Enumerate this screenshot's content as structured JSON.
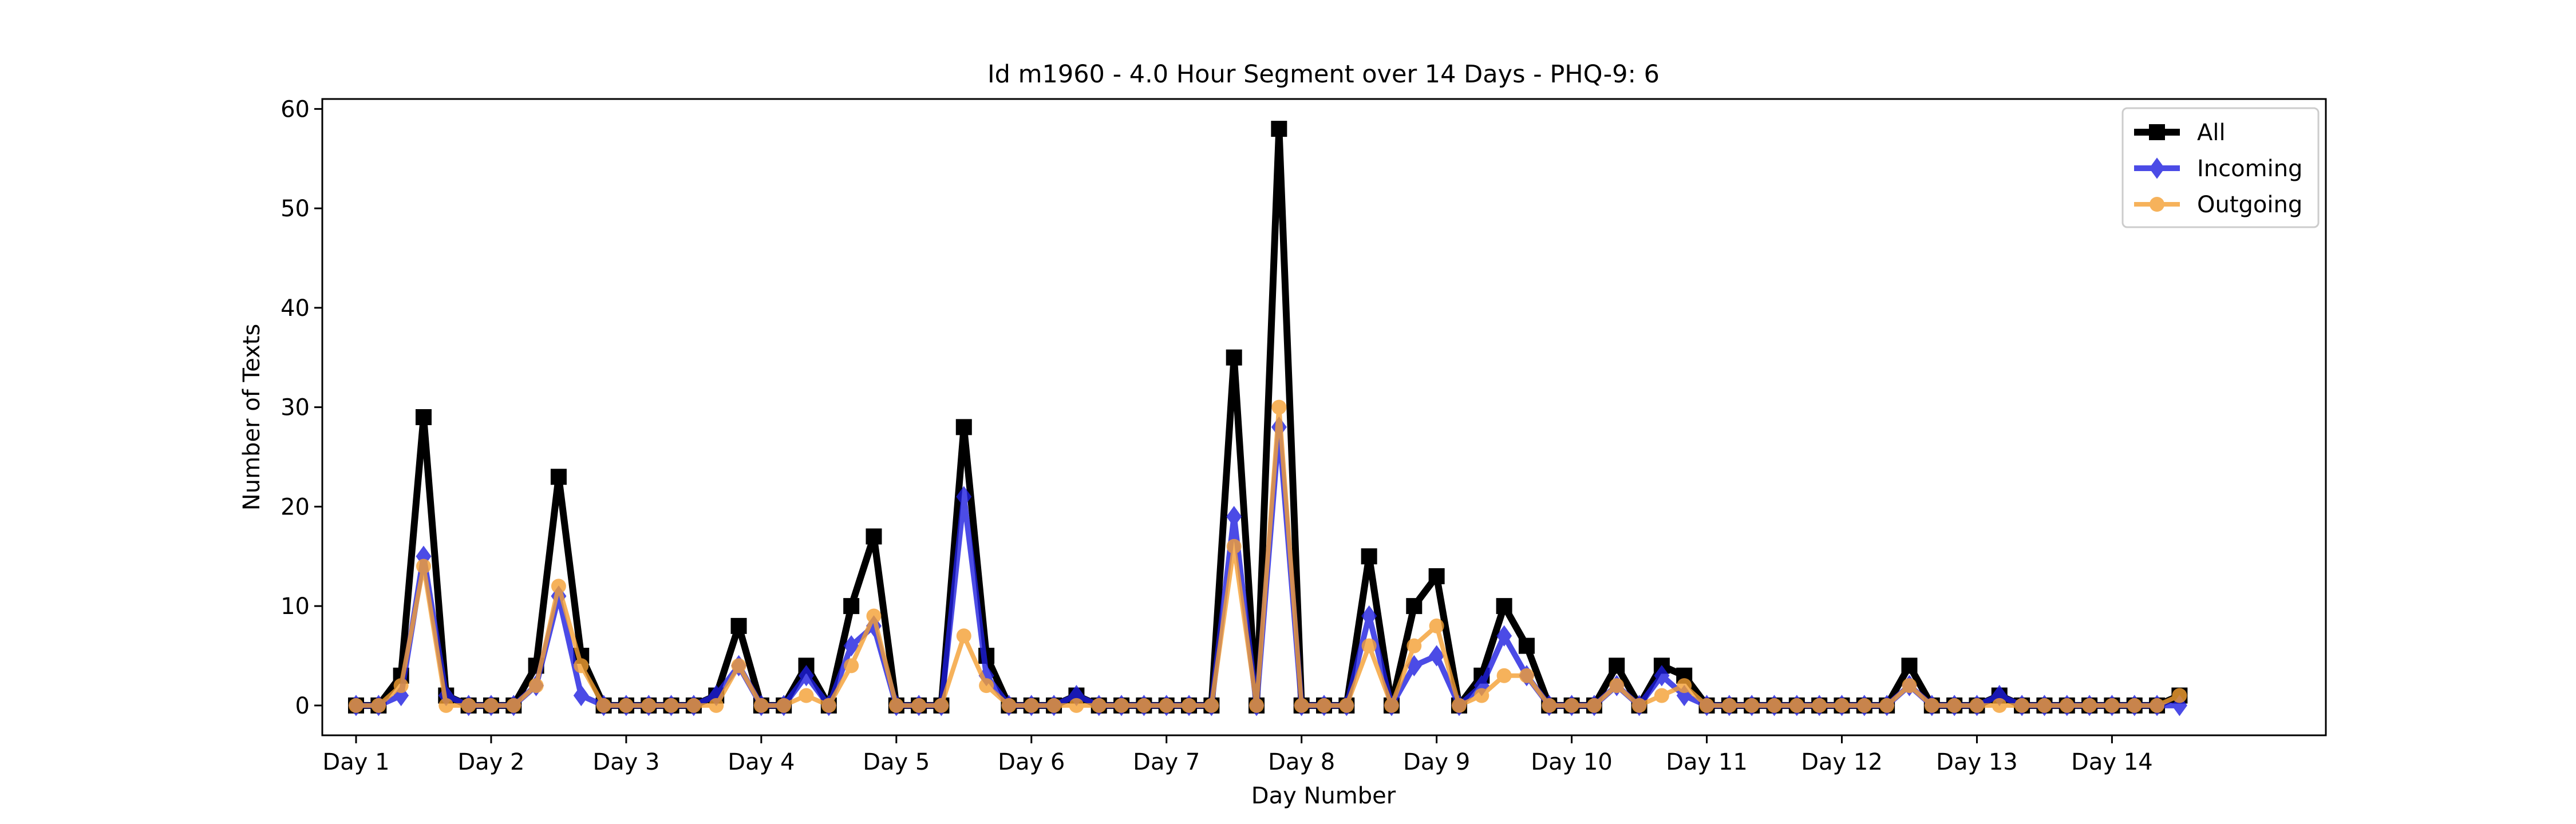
{
  "chart_data": {
    "type": "line",
    "title": "Id m1960 - 4.0 Hour Segment over 14 Days - PHQ-9: 6",
    "xlabel": "Day Number",
    "ylabel": "Number of Texts",
    "ylim": [
      -3,
      61
    ],
    "xlim": [
      -1.5,
      87.5
    ],
    "yticks": [
      0,
      10,
      20,
      30,
      40,
      50,
      60
    ],
    "xticks": [
      {
        "pos": 0,
        "label": "Day 1"
      },
      {
        "pos": 6,
        "label": "Day 2"
      },
      {
        "pos": 12,
        "label": "Day 3"
      },
      {
        "pos": 18,
        "label": "Day 4"
      },
      {
        "pos": 24,
        "label": "Day 5"
      },
      {
        "pos": 30,
        "label": "Day 6"
      },
      {
        "pos": 36,
        "label": "Day 7"
      },
      {
        "pos": 42,
        "label": "Day 8"
      },
      {
        "pos": 48,
        "label": "Day 9"
      },
      {
        "pos": 54,
        "label": "Day 10"
      },
      {
        "pos": 60,
        "label": "Day 11"
      },
      {
        "pos": 66,
        "label": "Day 12"
      },
      {
        "pos": 72,
        "label": "Day 13"
      },
      {
        "pos": 78,
        "label": "Day 14"
      }
    ],
    "grid": false,
    "legend_position": "top-right",
    "series": [
      {
        "name": "All",
        "color": "#000000",
        "marker": "square",
        "values": [
          0,
          0,
          3,
          29,
          1,
          0,
          0,
          0,
          4,
          23,
          5,
          0,
          0,
          0,
          0,
          0,
          1,
          8,
          0,
          0,
          4,
          0,
          10,
          17,
          0,
          0,
          0,
          28,
          5,
          0,
          0,
          0,
          1,
          0,
          0,
          0,
          0,
          0,
          0,
          35,
          0,
          58,
          0,
          0,
          0,
          15,
          0,
          10,
          13,
          0,
          3,
          10,
          6,
          0,
          0,
          0,
          4,
          0,
          4,
          3,
          0,
          0,
          0,
          0,
          0,
          0,
          0,
          0,
          0,
          4,
          0,
          0,
          0,
          1,
          0,
          0,
          0,
          0,
          0,
          0,
          0,
          1
        ]
      },
      {
        "name": "Incoming",
        "color": "#1f1fe0",
        "marker": "diamond",
        "values": [
          0,
          0,
          1,
          15,
          1,
          0,
          0,
          0,
          2,
          11,
          1,
          0,
          0,
          0,
          0,
          0,
          1,
          4,
          0,
          0,
          3,
          0,
          6,
          8,
          0,
          0,
          0,
          21,
          3,
          0,
          0,
          0,
          1,
          0,
          0,
          0,
          0,
          0,
          0,
          19,
          0,
          28,
          0,
          0,
          0,
          9,
          0,
          4,
          5,
          0,
          2,
          7,
          3,
          0,
          0,
          0,
          2,
          0,
          3,
          1,
          0,
          0,
          0,
          0,
          0,
          0,
          0,
          0,
          0,
          2,
          0,
          0,
          0,
          1,
          0,
          0,
          0,
          0,
          0,
          0,
          0,
          0
        ]
      },
      {
        "name": "Outgoing",
        "color": "#f5a033",
        "marker": "circle",
        "values": [
          0,
          0,
          2,
          14,
          0,
          0,
          0,
          0,
          2,
          12,
          4,
          0,
          0,
          0,
          0,
          0,
          0,
          4,
          0,
          0,
          1,
          0,
          4,
          9,
          0,
          0,
          0,
          7,
          2,
          0,
          0,
          0,
          0,
          0,
          0,
          0,
          0,
          0,
          0,
          16,
          0,
          30,
          0,
          0,
          0,
          6,
          0,
          6,
          8,
          0,
          1,
          3,
          3,
          0,
          0,
          0,
          2,
          0,
          1,
          2,
          0,
          0,
          0,
          0,
          0,
          0,
          0,
          0,
          0,
          2,
          0,
          0,
          0,
          0,
          0,
          0,
          0,
          0,
          0,
          0,
          0,
          1
        ]
      }
    ]
  }
}
